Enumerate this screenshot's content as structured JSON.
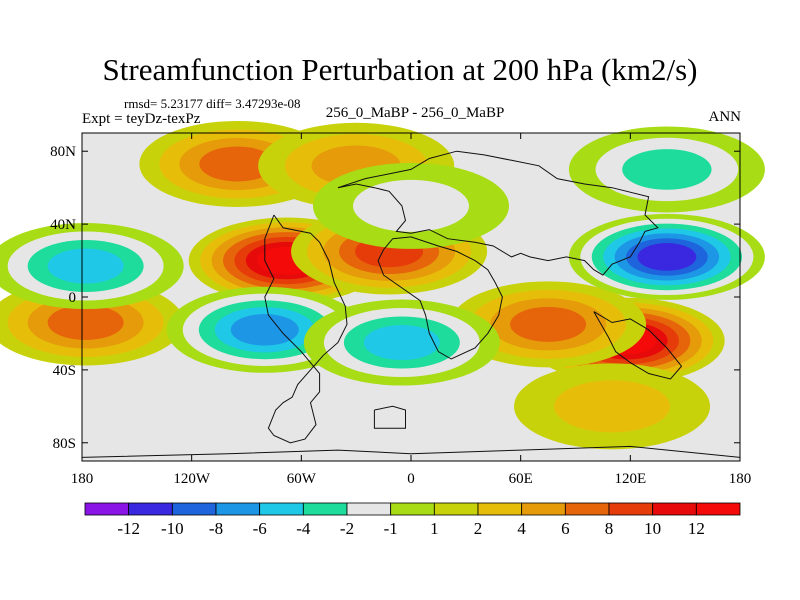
{
  "chart_data": {
    "type": "heatmap",
    "title": "Streamfunction Perturbation at 200 hPa (km2/s)",
    "stats_label": "rmsd= 5.23177  diff= 3.47293e-08",
    "experiment_label": "Expt = teyDz-texPz",
    "center_label": "256_0_MaBP - 256_0_MaBP",
    "period_label": "ANN",
    "x_range": [
      -180,
      180
    ],
    "y_range": [
      -90,
      90
    ],
    "x_ticks": [
      {
        "value": -180,
        "label": "180"
      },
      {
        "value": -120,
        "label": "120W"
      },
      {
        "value": -60,
        "label": "60W"
      },
      {
        "value": 0,
        "label": "0"
      },
      {
        "value": 60,
        "label": "60E"
      },
      {
        "value": 120,
        "label": "120E"
      },
      {
        "value": 180,
        "label": "180"
      }
    ],
    "y_ticks": [
      {
        "value": 80,
        "label": "80N"
      },
      {
        "value": 40,
        "label": "40N"
      },
      {
        "value": 0,
        "label": "0"
      },
      {
        "value": -40,
        "label": "40S"
      },
      {
        "value": -80,
        "label": "80S"
      }
    ],
    "contour_levels": [
      "-12",
      "-10",
      "-8",
      "-6",
      "-4",
      "-2",
      "-1",
      "1",
      "2",
      "4",
      "6",
      "8",
      "10",
      "12"
    ],
    "colors": [
      "#8a14e6",
      "#3a28e0",
      "#1e64dc",
      "#1e96e6",
      "#1ec8e6",
      "#1edc9c",
      "#e6e6e6",
      "#a8dc14",
      "#c8d20a",
      "#e6be0a",
      "#e69b0a",
      "#e6640a",
      "#e63c0a",
      "#e60a0a",
      "#f50a0a"
    ],
    "features": [
      {
        "kind": "high",
        "lon": -68,
        "lat": 20,
        "peak": 12
      },
      {
        "kind": "high",
        "lon": -12,
        "lat": 25,
        "peak": 8
      },
      {
        "kind": "high",
        "lon": -95,
        "lat": 73,
        "peak": 6
      },
      {
        "kind": "high",
        "lon": -30,
        "lat": 72,
        "peak": 4
      },
      {
        "kind": "high",
        "lon": 118,
        "lat": -24,
        "peak": 12
      },
      {
        "kind": "high",
        "lon": 75,
        "lat": -15,
        "peak": 6
      },
      {
        "kind": "high",
        "lon": -178,
        "lat": -14,
        "peak": 6
      },
      {
        "kind": "high",
        "lon": 110,
        "lat": -60,
        "peak": 2
      },
      {
        "kind": "low",
        "lon": 140,
        "lat": 22,
        "peak": -12
      },
      {
        "kind": "low",
        "lon": -80,
        "lat": -18,
        "peak": -8
      },
      {
        "kind": "low",
        "lon": 140,
        "lat": 70,
        "peak": -4
      },
      {
        "kind": "low",
        "lon": 0,
        "lat": 50,
        "peak": -2
      },
      {
        "kind": "low",
        "lon": -5,
        "lat": -25,
        "peak": -6
      },
      {
        "kind": "low",
        "lon": -178,
        "lat": 17,
        "peak": -6
      }
    ]
  }
}
